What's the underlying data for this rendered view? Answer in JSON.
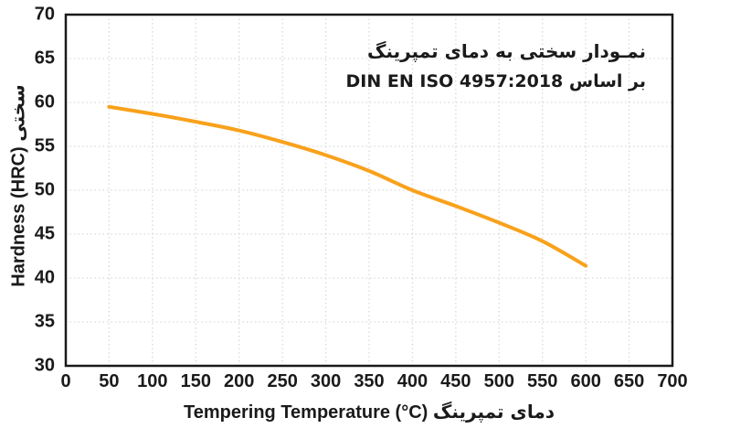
{
  "figure": {
    "background": "#ffffff",
    "text_color": "#1a1a1a"
  },
  "title": {
    "line1": "نمـودار سختی به دمای تمپرینگ",
    "line2": "بر اساس DIN EN ISO 4957:2018"
  },
  "axes": {
    "x_label_en": "Tempering Temperature (°C)",
    "x_label_fa": "دمای تمپرینگ",
    "y_label_en": "Hardness (HRC)",
    "y_label_fa": "سختی"
  },
  "chart_data": {
    "type": "line",
    "title": "نمـودار سختی به دمای تمپرینگ",
    "subtitle": "بر اساس DIN EN ISO 4957:2018",
    "xlabel": "Tempering Temperature (°C) دمای تمپرینگ",
    "ylabel": "Hardness (HRC) سختی",
    "x": [
      50,
      100,
      150,
      200,
      250,
      300,
      350,
      400,
      450,
      500,
      550,
      600
    ],
    "series": [
      {
        "name": "Hardness (HRC)",
        "color": "#F9A11B",
        "values": [
          59.5,
          58.7,
          57.8,
          56.8,
          55.5,
          54.0,
          52.2,
          50.0,
          48.2,
          46.3,
          44.2,
          41.4
        ]
      }
    ],
    "xlim": [
      0,
      700
    ],
    "ylim": [
      30,
      70
    ],
    "xticks": [
      0,
      50,
      100,
      150,
      200,
      250,
      300,
      350,
      400,
      450,
      500,
      550,
      600,
      650,
      700
    ],
    "yticks": [
      30,
      35,
      40,
      45,
      50,
      55,
      60,
      65,
      70
    ],
    "grid": true,
    "grid_style": "dotted",
    "grid_color": "#d9d9d9",
    "axis_color": "#1a1a1a",
    "legend": false
  }
}
